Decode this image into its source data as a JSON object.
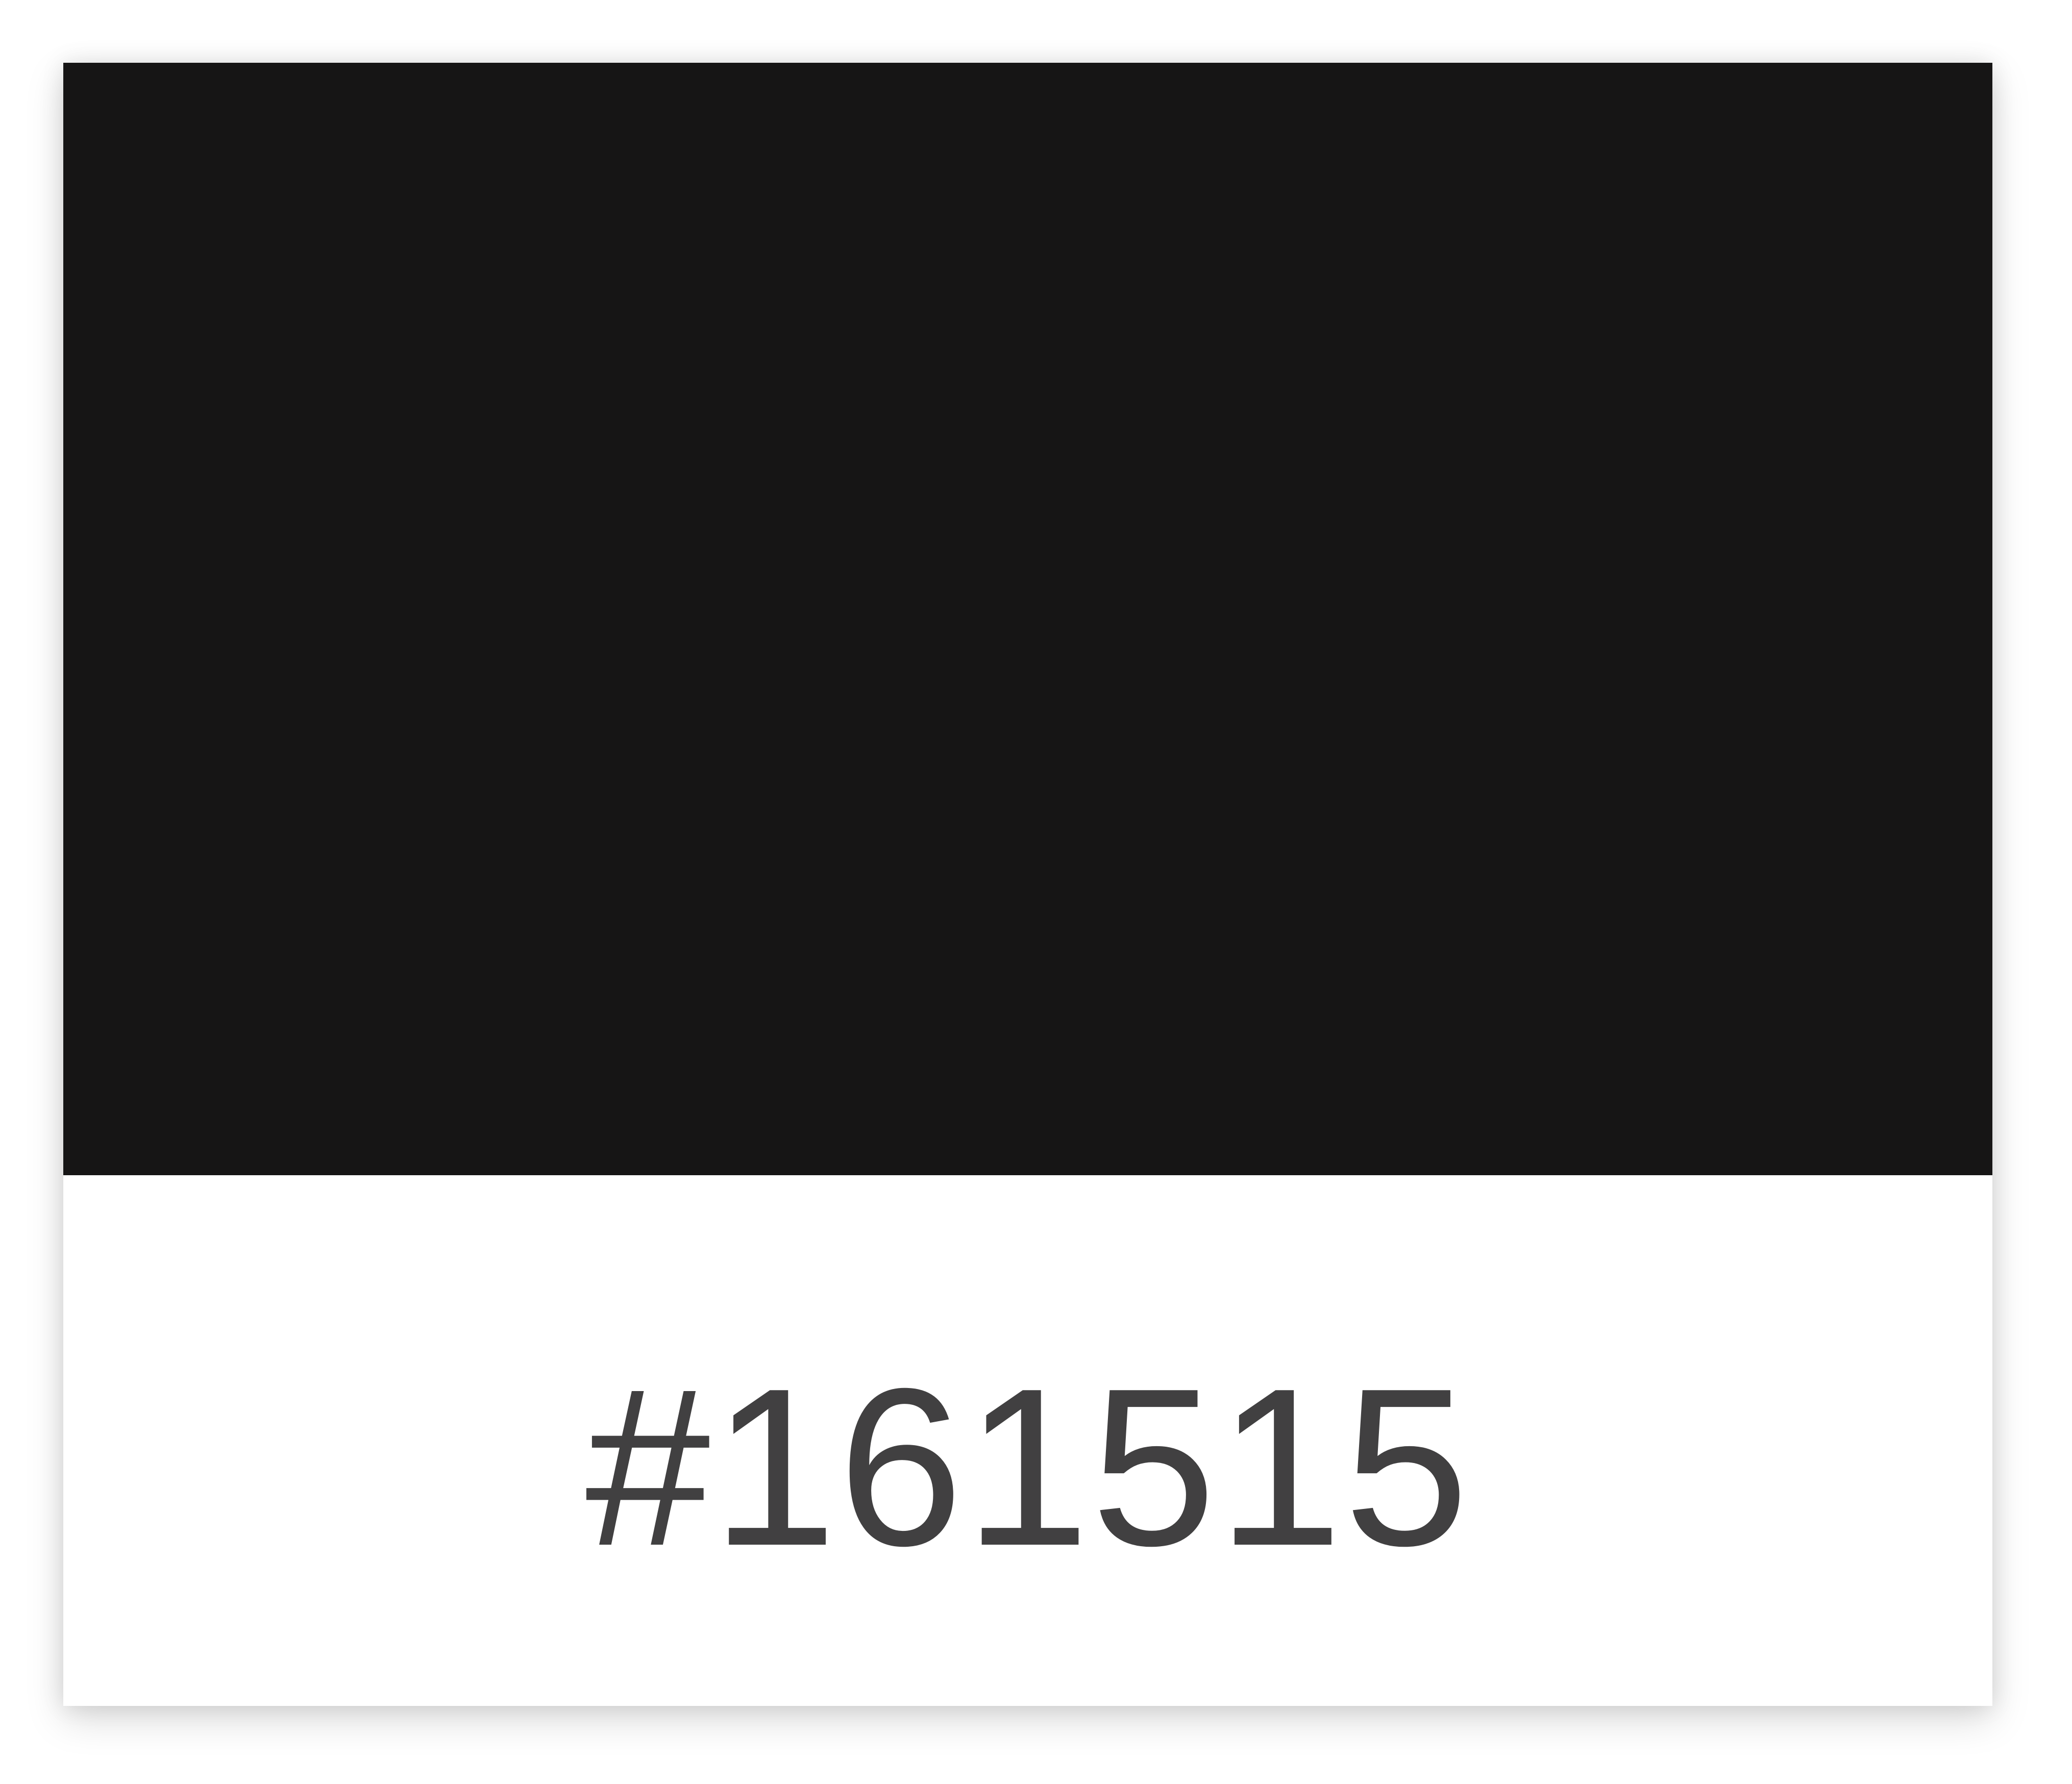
{
  "swatch": {
    "color": "#161515",
    "label": "#161515"
  },
  "colors": {
    "label_text": "#414041",
    "card_background": "#ffffff"
  }
}
